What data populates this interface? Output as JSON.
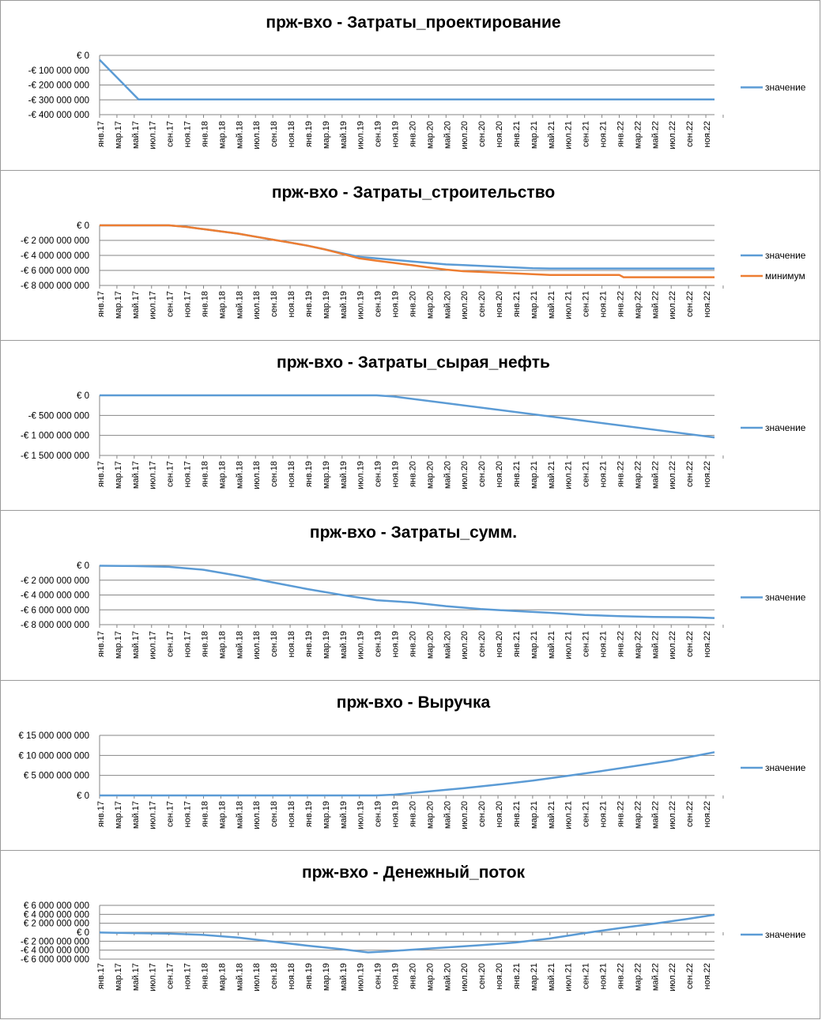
{
  "months": [
    "янв.17",
    "мар.17",
    "май.17",
    "июл.17",
    "сен.17",
    "ноя.17",
    "янв.18",
    "мар.18",
    "май.18",
    "июл.18",
    "сен.18",
    "ноя.18",
    "янв.19",
    "мар.19",
    "май.19",
    "июл.19",
    "сен.19",
    "ноя.19",
    "янв.20",
    "мар.20",
    "май.20",
    "июл.20",
    "сен.20",
    "ноя.20",
    "янв.21",
    "мар.21",
    "май.21",
    "июл.21",
    "сен.21",
    "ноя.21",
    "янв.22",
    "мар.22",
    "май.22",
    "июл.22",
    "сен.22",
    "ноя.22"
  ],
  "colors": {
    "series1": "#5b9bd5",
    "series2": "#ed7d31",
    "grid": "#868686"
  },
  "chart_data": [
    {
      "type": "line",
      "title": "прж-вхо - Затраты_проектирование",
      "yticks": [
        "€ 0",
        "-€ 100 000 000",
        "-€ 200 000 000",
        "-€ 300 000 000",
        "-€ 400 000 000"
      ],
      "ylim": [
        -400000000,
        0
      ],
      "series": [
        {
          "name": "значение",
          "x": [
            0,
            4.5,
            71
          ],
          "y": [
            -30000000,
            -297000000,
            -297000000
          ]
        }
      ]
    },
    {
      "type": "line",
      "title": "прж-вхо - Затраты_строительство",
      "yticks": [
        "€ 0",
        "-€ 2 000 000 000",
        "-€ 4 000 000 000",
        "-€ 6 000 000 000",
        "-€ 8 000 000 000"
      ],
      "ylim": [
        -8000000000,
        0
      ],
      "series": [
        {
          "name": "значение",
          "x": [
            0,
            8,
            10,
            12,
            14,
            16,
            18,
            20,
            22,
            24,
            26,
            28,
            30,
            32,
            34,
            36,
            38,
            40,
            42,
            44,
            46,
            48,
            50,
            52,
            54,
            56,
            58,
            71
          ],
          "y": [
            0,
            0,
            -200000000,
            -500000000,
            -800000000,
            -1100000000,
            -1500000000,
            -1900000000,
            -2300000000,
            -2700000000,
            -3200000000,
            -3700000000,
            -4200000000,
            -4400000000,
            -4600000000,
            -4800000000,
            -5000000000,
            -5200000000,
            -5300000000,
            -5400000000,
            -5500000000,
            -5600000000,
            -5700000000,
            -5750000000,
            -5750000000,
            -5750000000,
            -5750000000,
            -5750000000
          ]
        },
        {
          "name": "минимум",
          "x": [
            0,
            8,
            10,
            12,
            14,
            16,
            18,
            20,
            22,
            24,
            26,
            28,
            30,
            32,
            34,
            36,
            38,
            40,
            42,
            44,
            46,
            48,
            50,
            52,
            54,
            56,
            58,
            60,
            60.5,
            71
          ],
          "y": [
            0,
            0,
            -200000000,
            -500000000,
            -800000000,
            -1100000000,
            -1500000000,
            -1900000000,
            -2300000000,
            -2700000000,
            -3200000000,
            -3800000000,
            -4400000000,
            -4700000000,
            -5000000000,
            -5300000000,
            -5600000000,
            -5900000000,
            -6100000000,
            -6200000000,
            -6300000000,
            -6400000000,
            -6500000000,
            -6600000000,
            -6600000000,
            -6600000000,
            -6600000000,
            -6600000000,
            -6900000000,
            -6900000000
          ]
        }
      ]
    },
    {
      "type": "line",
      "title": "прж-вхо - Затраты_сырая_нефть",
      "yticks": [
        "€ 0",
        "-€ 500 000 000",
        "-€ 1 000 000 000",
        "-€ 1 500 000 000"
      ],
      "ylim": [
        -1500000000,
        0
      ],
      "series": [
        {
          "name": "значение",
          "x": [
            0,
            32,
            34,
            71
          ],
          "y": [
            0,
            0,
            -30000000,
            -1050000000
          ]
        }
      ]
    },
    {
      "type": "line",
      "title": "прж-вхо - Затраты_сумм.",
      "yticks": [
        "€ 0",
        "-€ 2 000 000 000",
        "-€ 4 000 000 000",
        "-€ 6 000 000 000",
        "-€ 8 000 000 000"
      ],
      "ylim": [
        -8000000000,
        0
      ],
      "series": [
        {
          "name": "значение",
          "x": [
            0,
            4,
            8,
            12,
            16,
            20,
            24,
            28,
            32,
            36,
            40,
            44,
            48,
            52,
            56,
            60,
            64,
            68,
            71
          ],
          "y": [
            -50000000,
            -100000000,
            -200000000,
            -600000000,
            -1400000000,
            -2300000000,
            -3200000000,
            -4000000000,
            -4700000000,
            -5000000000,
            -5500000000,
            -5900000000,
            -6150000000,
            -6400000000,
            -6700000000,
            -6850000000,
            -6950000000,
            -7000000000,
            -7100000000
          ]
        }
      ]
    },
    {
      "type": "line",
      "title": "прж-вхо - Выручка",
      "yticks": [
        "€ 15 000 000 000",
        "€ 10 000 000 000",
        "€ 5 000 000 000",
        "€ 0"
      ],
      "ylim": [
        0,
        15000000000
      ],
      "series": [
        {
          "name": "значение",
          "x": [
            0,
            32,
            34,
            38,
            42,
            46,
            50,
            54,
            58,
            62,
            66,
            71
          ],
          "y": [
            0,
            0,
            200000000,
            1000000000,
            1800000000,
            2700000000,
            3700000000,
            4900000000,
            6100000000,
            7400000000,
            8700000000,
            10800000000
          ]
        }
      ]
    },
    {
      "type": "line",
      "title": "прж-вхо - Денежный_поток",
      "yticks": [
        "€ 6 000 000 000",
        "€ 4 000 000 000",
        "€ 2 000 000 000",
        "€ 0",
        "-€ 2 000 000 000",
        "-€ 4 000 000 000",
        "-€ 6 000 000 000"
      ],
      "ylim": [
        -6000000000,
        6000000000
      ],
      "series": [
        {
          "name": "значение",
          "x": [
            0,
            4,
            8,
            12,
            16,
            20,
            24,
            28,
            31,
            33,
            36,
            40,
            44,
            48,
            52,
            56,
            60,
            64,
            68,
            71
          ],
          "y": [
            -50000000,
            -200000000,
            -300000000,
            -600000000,
            -1200000000,
            -2100000000,
            -3000000000,
            -3800000000,
            -4500000000,
            -4300000000,
            -3900000000,
            -3400000000,
            -2900000000,
            -2300000000,
            -1400000000,
            -200000000,
            900000000,
            1900000000,
            3000000000,
            3900000000
          ]
        }
      ]
    }
  ]
}
